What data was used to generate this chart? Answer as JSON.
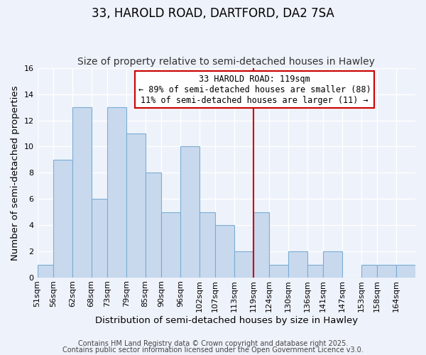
{
  "title": "33, HAROLD ROAD, DARTFORD, DA2 7SA",
  "subtitle": "Size of property relative to semi-detached houses in Hawley",
  "xlabel": "Distribution of semi-detached houses by size in Hawley",
  "ylabel": "Number of semi-detached properties",
  "bin_edges": [
    51,
    56,
    62,
    68,
    73,
    79,
    85,
    90,
    96,
    102,
    107,
    113,
    119,
    124,
    130,
    136,
    141,
    147,
    153,
    158,
    164,
    170
  ],
  "bar_heights": [
    1,
    9,
    13,
    6,
    13,
    11,
    8,
    5,
    10,
    5,
    4,
    2,
    5,
    1,
    2,
    1,
    2,
    0,
    1,
    1,
    1
  ],
  "bar_color": "#c8d9ee",
  "bar_edge_color": "#7aadd4",
  "vline_x": 119,
  "vline_color": "#cc0000",
  "ylim": [
    0,
    16
  ],
  "yticks": [
    0,
    2,
    4,
    6,
    8,
    10,
    12,
    14,
    16
  ],
  "annotation_title": "33 HAROLD ROAD: 119sqm",
  "annotation_line1": "← 89% of semi-detached houses are smaller (88)",
  "annotation_line2": "11% of semi-detached houses are larger (11) →",
  "annotation_box_color": "#ffffff",
  "annotation_box_edge": "#cc0000",
  "bg_color": "#eef2fa",
  "grid_color": "#ffffff",
  "footer1": "Contains HM Land Registry data © Crown copyright and database right 2025.",
  "footer2": "Contains public sector information licensed under the Open Government Licence v3.0.",
  "title_fontsize": 12,
  "subtitle_fontsize": 10,
  "axis_label_fontsize": 9.5,
  "tick_fontsize": 8,
  "annotation_fontsize": 8.5,
  "footer_fontsize": 7
}
